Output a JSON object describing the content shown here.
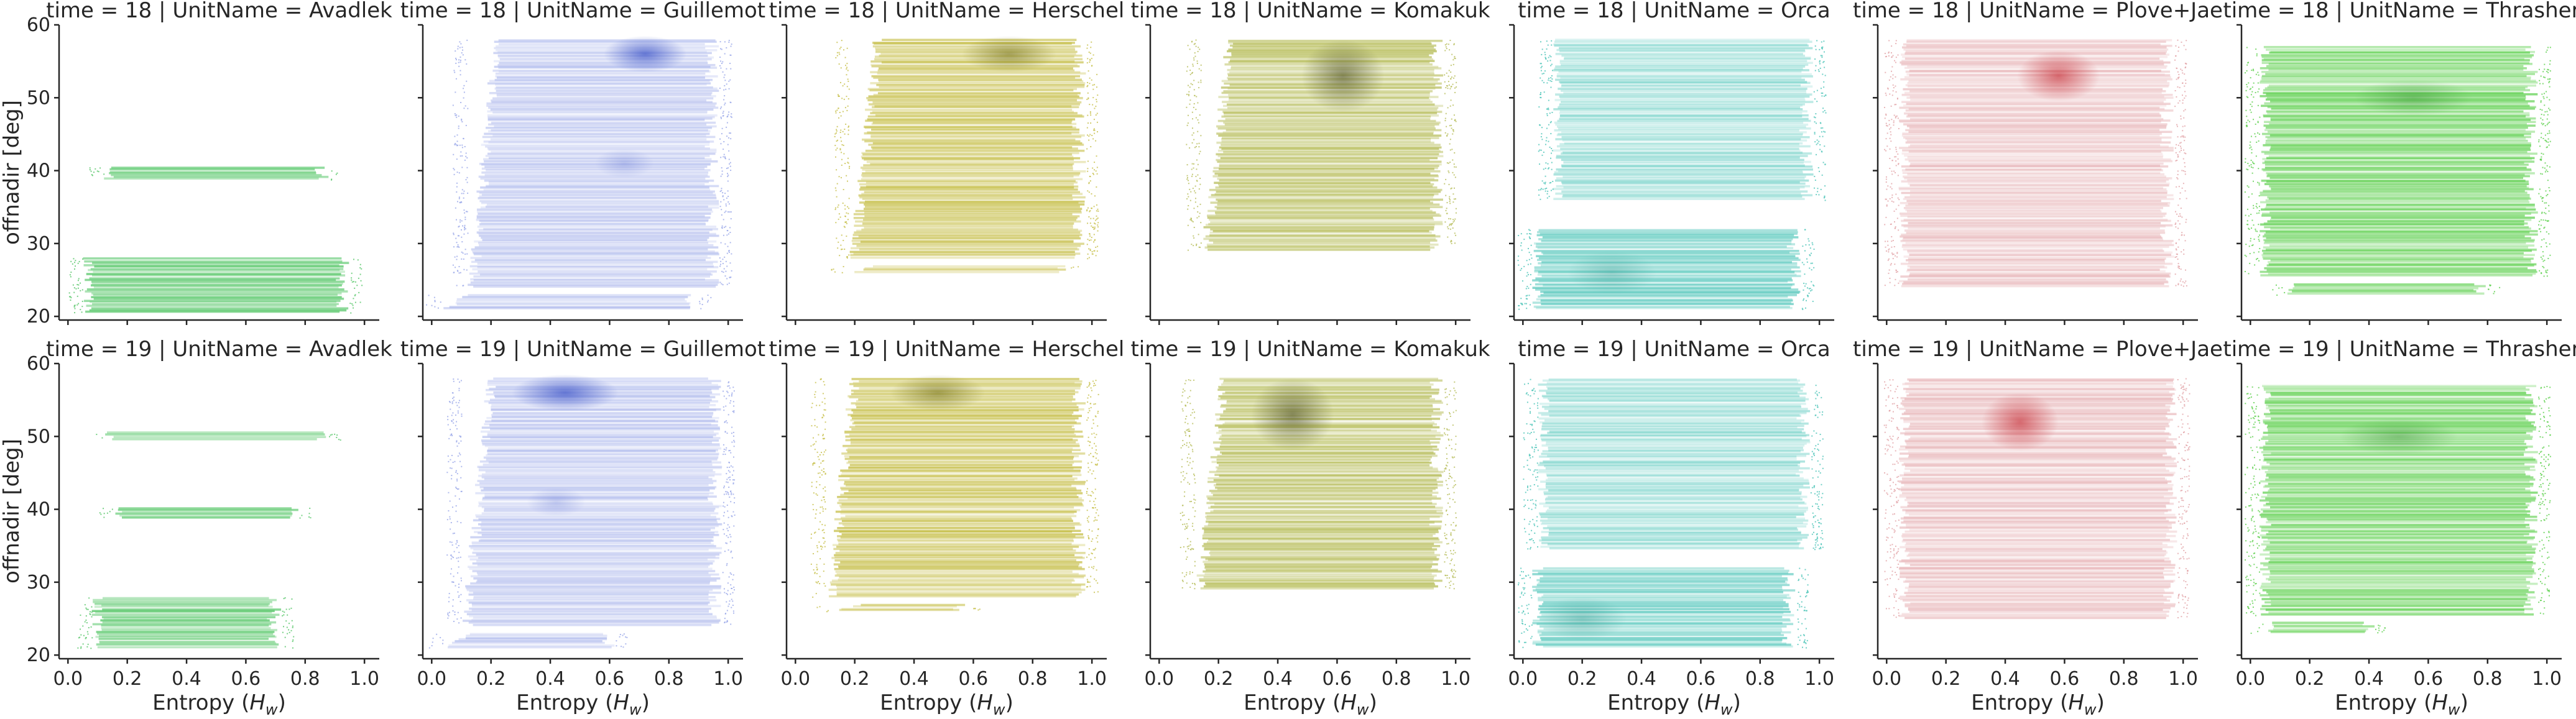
{
  "chart_data": {
    "type": "scatter",
    "facet_row_var": "time",
    "facet_col_var": "UnitName",
    "rows": [
      "18",
      "19"
    ],
    "cols": [
      "Avadlek",
      "Guillemot",
      "Herschel",
      "Komakuk",
      "Orca",
      "Plove+Jae",
      "Thrasher"
    ],
    "title_template": "{row_var} = {row} | {col_var} = {col}",
    "xlabel": "Entropy ($H_w$)",
    "xlabel_parts": [
      "Entropy (",
      "H",
      "w",
      ")"
    ],
    "ylabel": "offnadir [deg]",
    "xlim": [
      -0.03,
      1.05
    ],
    "ylim": [
      19.5,
      60
    ],
    "xticks": [
      "0.0",
      "0.2",
      "0.4",
      "0.6",
      "0.8",
      "1.0"
    ],
    "yticks": [
      "20",
      "30",
      "40",
      "50",
      "60"
    ],
    "grid": false,
    "colors": {
      "Avadlek": "#55c667",
      "Guillemot": "#9aa8e8",
      "Herschel": "#c7bf4a",
      "Komakuk": "#b7bd5a",
      "Orca": "#4cc4b8",
      "Plove+Jae": "#e2a4a8",
      "Thrasher": "#5ccf4c"
    },
    "dense_colors": {
      "Avadlek": "#3aa84f",
      "Guillemot": "#3e55c8",
      "Herschel": "#6e6a12",
      "Komakuk": "#4e5024",
      "Orca": "#2a8f86",
      "Plove+Jae": "#c8363e",
      "Thrasher": "#2f8a2a"
    },
    "panels": [
      {
        "time": "18",
        "unit": "Avadlek",
        "bands": [
          {
            "y": [
              20.5,
              28.0
            ],
            "x": [
              0.05,
              0.95
            ],
            "d": 0.85
          },
          {
            "y": [
              38.8,
              40.5
            ],
            "x": [
              0.12,
              0.88
            ],
            "d": 0.8
          }
        ],
        "hot": []
      },
      {
        "time": "18",
        "unit": "Guillemot",
        "bands": [
          {
            "y": [
              21.0,
              23.0
            ],
            "x": [
              0.03,
              0.9
            ],
            "d": 0.6
          },
          {
            "y": [
              24.0,
              58.0
            ],
            "x": [
              0.12,
              0.97
            ],
            "d": 0.55
          }
        ],
        "hot": [
          {
            "x": 0.72,
            "y": 56,
            "rx": 0.14,
            "ry": 2.5,
            "a": 0.75
          },
          {
            "x": 0.65,
            "y": 41,
            "rx": 0.1,
            "ry": 2,
            "a": 0.25
          }
        ]
      },
      {
        "time": "18",
        "unit": "Herschel",
        "bands": [
          {
            "y": [
              26.0,
              27.0
            ],
            "x": [
              0.17,
              0.92
            ],
            "d": 0.7
          },
          {
            "y": [
              28.0,
              58.0
            ],
            "x": [
              0.18,
              0.98
            ],
            "d": 0.85
          }
        ],
        "hot": [
          {
            "x": 0.72,
            "y": 56,
            "rx": 0.16,
            "ry": 2.5,
            "a": 0.55
          }
        ]
      },
      {
        "time": "18",
        "unit": "Komakuk",
        "bands": [
          {
            "y": [
              29.0,
              58.0
            ],
            "x": [
              0.14,
              0.96
            ],
            "d": 0.85
          }
        ],
        "hot": [
          {
            "x": 0.62,
            "y": 53,
            "rx": 0.14,
            "ry": 5,
            "a": 0.6
          }
        ]
      },
      {
        "time": "18",
        "unit": "Orca",
        "bands": [
          {
            "y": [
              21.0,
              32.0
            ],
            "x": [
              0.03,
              0.94
            ],
            "d": 0.75
          },
          {
            "y": [
              36.0,
              58.0
            ],
            "x": [
              0.1,
              0.98
            ],
            "d": 0.5
          }
        ],
        "hot": [
          {
            "x": 0.3,
            "y": 26,
            "rx": 0.15,
            "ry": 3,
            "a": 0.3
          }
        ]
      },
      {
        "time": "18",
        "unit": "Plove+Jae",
        "bands": [
          {
            "y": [
              24.0,
              58.0
            ],
            "x": [
              0.04,
              0.97
            ],
            "d": 0.6
          }
        ],
        "hot": [
          {
            "x": 0.58,
            "y": 53,
            "rx": 0.14,
            "ry": 3.5,
            "a": 0.7
          }
        ]
      },
      {
        "time": "18",
        "unit": "Thrasher",
        "bands": [
          {
            "y": [
              23.0,
              24.5
            ],
            "x": [
              0.12,
              0.8
            ],
            "d": 0.7
          },
          {
            "y": [
              25.5,
              57.0
            ],
            "x": [
              0.03,
              0.97
            ],
            "d": 0.8
          }
        ],
        "hot": [
          {
            "x": 0.55,
            "y": 50,
            "rx": 0.2,
            "ry": 2.5,
            "a": 0.4
          }
        ]
      },
      {
        "time": "19",
        "unit": "Avadlek",
        "bands": [
          {
            "y": [
              21.0,
              28.0
            ],
            "x": [
              0.08,
              0.72
            ],
            "d": 0.85
          },
          {
            "y": [
              38.8,
              40.3
            ],
            "x": [
              0.15,
              0.78
            ],
            "d": 0.8
          },
          {
            "y": [
              49.5,
              50.6
            ],
            "x": [
              0.12,
              0.88
            ],
            "d": 0.75
          }
        ],
        "hot": []
      },
      {
        "time": "19",
        "unit": "Guillemot",
        "bands": [
          {
            "y": [
              21.0,
              23.0
            ],
            "x": [
              0.04,
              0.62
            ],
            "d": 0.6
          },
          {
            "y": [
              24.0,
              58.0
            ],
            "x": [
              0.1,
              0.98
            ],
            "d": 0.55
          }
        ],
        "hot": [
          {
            "x": 0.45,
            "y": 56,
            "rx": 0.18,
            "ry": 2.5,
            "a": 0.75
          },
          {
            "x": 0.42,
            "y": 41,
            "rx": 0.1,
            "ry": 2,
            "a": 0.25
          }
        ]
      },
      {
        "time": "19",
        "unit": "Herschel",
        "bands": [
          {
            "y": [
              26.0,
              27.0
            ],
            "x": [
              0.12,
              0.58
            ],
            "d": 0.7
          },
          {
            "y": [
              28.0,
              58.0
            ],
            "x": [
              0.1,
              0.98
            ],
            "d": 0.85
          }
        ],
        "hot": [
          {
            "x": 0.48,
            "y": 56,
            "rx": 0.16,
            "ry": 2.5,
            "a": 0.55
          }
        ]
      },
      {
        "time": "19",
        "unit": "Komakuk",
        "bands": [
          {
            "y": [
              29.0,
              58.0
            ],
            "x": [
              0.12,
              0.96
            ],
            "d": 0.85
          }
        ],
        "hot": [
          {
            "x": 0.45,
            "y": 53,
            "rx": 0.14,
            "ry": 5,
            "a": 0.6
          }
        ]
      },
      {
        "time": "19",
        "unit": "Orca",
        "bands": [
          {
            "y": [
              21.0,
              32.0
            ],
            "x": [
              0.03,
              0.92
            ],
            "d": 0.75
          },
          {
            "y": [
              34.5,
              58.0
            ],
            "x": [
              0.05,
              0.97
            ],
            "d": 0.5
          }
        ],
        "hot": [
          {
            "x": 0.2,
            "y": 25,
            "rx": 0.15,
            "ry": 3,
            "a": 0.35
          }
        ]
      },
      {
        "time": "19",
        "unit": "Plove+Jae",
        "bands": [
          {
            "y": [
              25.0,
              58.0
            ],
            "x": [
              0.04,
              0.98
            ],
            "d": 0.6
          }
        ],
        "hot": [
          {
            "x": 0.45,
            "y": 52,
            "rx": 0.13,
            "ry": 4,
            "a": 0.7
          }
        ]
      },
      {
        "time": "19",
        "unit": "Thrasher",
        "bands": [
          {
            "y": [
              23.0,
              24.5
            ],
            "x": [
              0.05,
              0.42
            ],
            "d": 0.7
          },
          {
            "y": [
              25.5,
              57.0
            ],
            "x": [
              0.03,
              0.97
            ],
            "d": 0.8
          }
        ],
        "hot": [
          {
            "x": 0.5,
            "y": 50,
            "rx": 0.2,
            "ry": 2.5,
            "a": 0.4
          }
        ]
      }
    ]
  }
}
